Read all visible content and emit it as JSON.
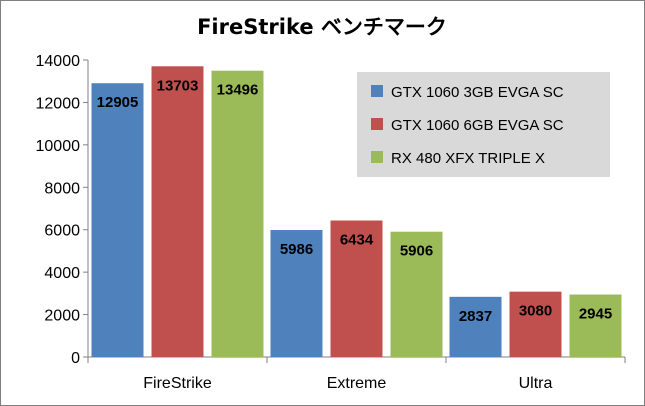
{
  "chart_data": {
    "type": "bar",
    "title": "FireStrike ベンチマーク",
    "categories": [
      "FireStrike",
      "Extreme",
      "Ultra"
    ],
    "series": [
      {
        "name": "GTX 1060 3GB EVGA SC",
        "color": "#4f81bd",
        "values": [
          12905,
          5986,
          2837
        ]
      },
      {
        "name": "GTX 1060 6GB EVGA SC",
        "color": "#c0504d",
        "values": [
          13703,
          6434,
          3080
        ]
      },
      {
        "name": "RX 480 XFX TRIPLE X",
        "color": "#9bbb59",
        "values": [
          13496,
          5906,
          2945
        ]
      }
    ],
    "ylim": [
      0,
      14000
    ],
    "yticks": [
      0,
      2000,
      4000,
      6000,
      8000,
      10000,
      12000,
      14000
    ],
    "grid": false,
    "legend_position": "top-right",
    "data_labels": true
  }
}
